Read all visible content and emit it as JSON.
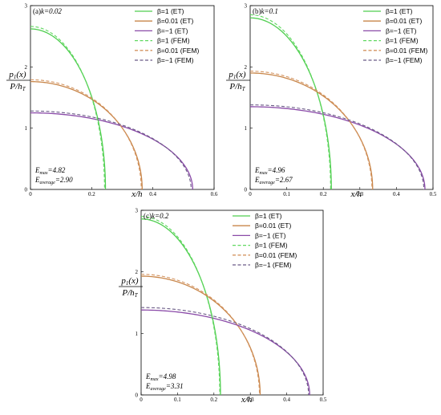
{
  "ylabel_top": "p",
  "ylabel_top_sub": "1",
  "ylabel_top_rest": "(x)",
  "ylabel_bottom": "P/h",
  "ylabel_bottom_sub": "T",
  "xlabel": "x/h",
  "legend": [
    "β=1 (ET)",
    "β=0.01 (ET)",
    "β=−1 (ET)",
    "β=1 (FEM)",
    "β=0.01 (FEM)",
    "β=−1 (FEM)"
  ],
  "colors": {
    "b1": "#4fce4f",
    "b001": "#c8864a",
    "bm1": "#8a4aa8",
    "b1_fem": "#60d860",
    "b001_fem": "#d49460",
    "bm1_fem": "#6a5a86"
  },
  "chart_data": [
    {
      "type": "line",
      "panel": "(a)",
      "title": "(a)k=0.02",
      "xlim": [
        0,
        0.6
      ],
      "ylim": [
        0,
        3
      ],
      "xticks": [
        "0",
        "0.2",
        "0.4",
        "0.6"
      ],
      "yticks": [
        "0",
        "1",
        "2",
        "3"
      ],
      "emax": "Eₘₐₓ=4.82",
      "eavg": "Eₐᵥₑᵣₐᵍₑ=2.90",
      "emax_label": "max",
      "emax_value": "=4.82",
      "eavg_label": "average",
      "eavg_value": "=2.90",
      "series": [
        {
          "name": "β=1 (ET)",
          "key": "b1",
          "p0": 2.62,
          "a": 0.245
        },
        {
          "name": "β=0.01 (ET)",
          "key": "b001",
          "p0": 1.76,
          "a": 0.365
        },
        {
          "name": "β=−1 (ET)",
          "key": "bm1",
          "p0": 1.25,
          "a": 0.53
        },
        {
          "name": "β=1 (FEM)",
          "key": "b1_fem",
          "p0": 2.66,
          "a": 0.242
        },
        {
          "name": "β=0.01 (FEM)",
          "key": "b001_fem",
          "p0": 1.79,
          "a": 0.362
        },
        {
          "name": "β=−1 (FEM)",
          "key": "bm1_fem",
          "p0": 1.28,
          "a": 0.525
        }
      ]
    },
    {
      "type": "line",
      "panel": "(b)",
      "title": "(b)k=0.1",
      "xlim": [
        0,
        0.5
      ],
      "ylim": [
        0,
        3
      ],
      "xticks": [
        "0",
        "0.1",
        "0.2",
        "0.3",
        "0.4",
        "0.5"
      ],
      "yticks": [
        "0",
        "1",
        "2",
        "3"
      ],
      "emax_label": "max",
      "emax_value": "=4.96",
      "eavg_label": "average",
      "eavg_value": "=2.67",
      "series": [
        {
          "name": "β=1 (ET)",
          "key": "b1",
          "p0": 2.8,
          "a": 0.222
        },
        {
          "name": "β=0.01 (ET)",
          "key": "b001",
          "p0": 1.9,
          "a": 0.335
        },
        {
          "name": "β=−1 (ET)",
          "key": "bm1",
          "p0": 1.35,
          "a": 0.478
        },
        {
          "name": "β=1 (FEM)",
          "key": "b1_fem",
          "p0": 2.85,
          "a": 0.22
        },
        {
          "name": "β=0.01 (FEM)",
          "key": "b001_fem",
          "p0": 1.93,
          "a": 0.333
        },
        {
          "name": "β=−1 (FEM)",
          "key": "bm1_fem",
          "p0": 1.38,
          "a": 0.475
        }
      ]
    },
    {
      "type": "line",
      "panel": "(c)",
      "title": "(c)k=0.2",
      "xlim": [
        0,
        0.5
      ],
      "ylim": [
        0,
        3
      ],
      "xticks": [
        "0",
        "0.1",
        "0.2",
        "0.3",
        "0.4",
        "0.5"
      ],
      "yticks": [
        "0",
        "1",
        "2",
        "3"
      ],
      "emax_label": "max",
      "emax_value": "=4.98",
      "eavg_label": "average",
      "eavg_value": "=3.31",
      "series": [
        {
          "name": "β=1 (ET)",
          "key": "b1",
          "p0": 2.86,
          "a": 0.218
        },
        {
          "name": "β=0.01 (ET)",
          "key": "b001",
          "p0": 1.93,
          "a": 0.327
        },
        {
          "name": "β=−1 (ET)",
          "key": "bm1",
          "p0": 1.38,
          "a": 0.463
        },
        {
          "name": "β=1 (FEM)",
          "key": "b1_fem",
          "p0": 2.9,
          "a": 0.216
        },
        {
          "name": "β=0.01 (FEM)",
          "key": "b001_fem",
          "p0": 1.96,
          "a": 0.325
        },
        {
          "name": "β=−1 (FEM)",
          "key": "bm1_fem",
          "p0": 1.42,
          "a": 0.46
        }
      ]
    }
  ]
}
